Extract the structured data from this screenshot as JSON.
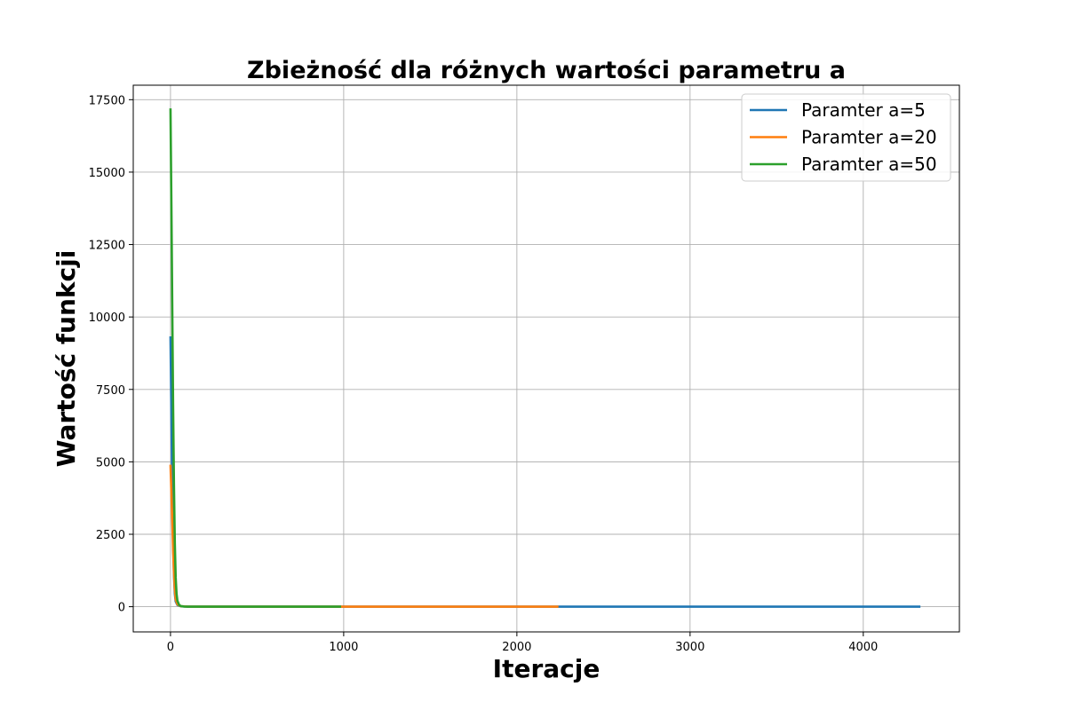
{
  "chart_data": {
    "type": "line",
    "title": "Zbieżność dla różnych wartości parametru a",
    "xlabel": "Iteracje",
    "ylabel": "Wartość funkcji",
    "xlim": [
      -215,
      4555
    ],
    "ylim": [
      -870,
      18000
    ],
    "xticks": [
      0,
      1000,
      2000,
      3000,
      4000
    ],
    "yticks": [
      0,
      2500,
      5000,
      7500,
      10000,
      12500,
      15000,
      17500
    ],
    "grid": true,
    "legend_position": "top-right",
    "series": [
      {
        "name": "Paramter a=5",
        "color": "#1f77b4",
        "x": [
          0,
          5,
          10,
          15,
          20,
          25,
          30,
          40,
          60,
          100,
          200,
          500,
          1000,
          2000,
          3000,
          4000,
          4330
        ],
        "y": [
          9330,
          6800,
          4200,
          2300,
          1100,
          450,
          180,
          60,
          12,
          3,
          0,
          0,
          0,
          0,
          0,
          0,
          0
        ]
      },
      {
        "name": "Paramter a=20",
        "color": "#ff7f0e",
        "x": [
          0,
          5,
          10,
          15,
          20,
          25,
          30,
          40,
          60,
          100,
          200,
          500,
          1000,
          1500,
          2000,
          2240
        ],
        "y": [
          4900,
          4000,
          3000,
          2000,
          1200,
          600,
          250,
          80,
          15,
          3,
          0,
          0,
          0,
          0,
          0,
          0
        ]
      },
      {
        "name": "Paramter a=50",
        "color": "#2ca02c",
        "x": [
          0,
          5,
          10,
          15,
          20,
          25,
          30,
          35,
          40,
          50,
          60,
          80,
          100,
          200,
          500,
          985
        ],
        "y": [
          17200,
          14000,
          10500,
          7000,
          4200,
          2200,
          1000,
          450,
          200,
          60,
          20,
          5,
          1,
          0,
          0,
          0
        ]
      }
    ]
  }
}
